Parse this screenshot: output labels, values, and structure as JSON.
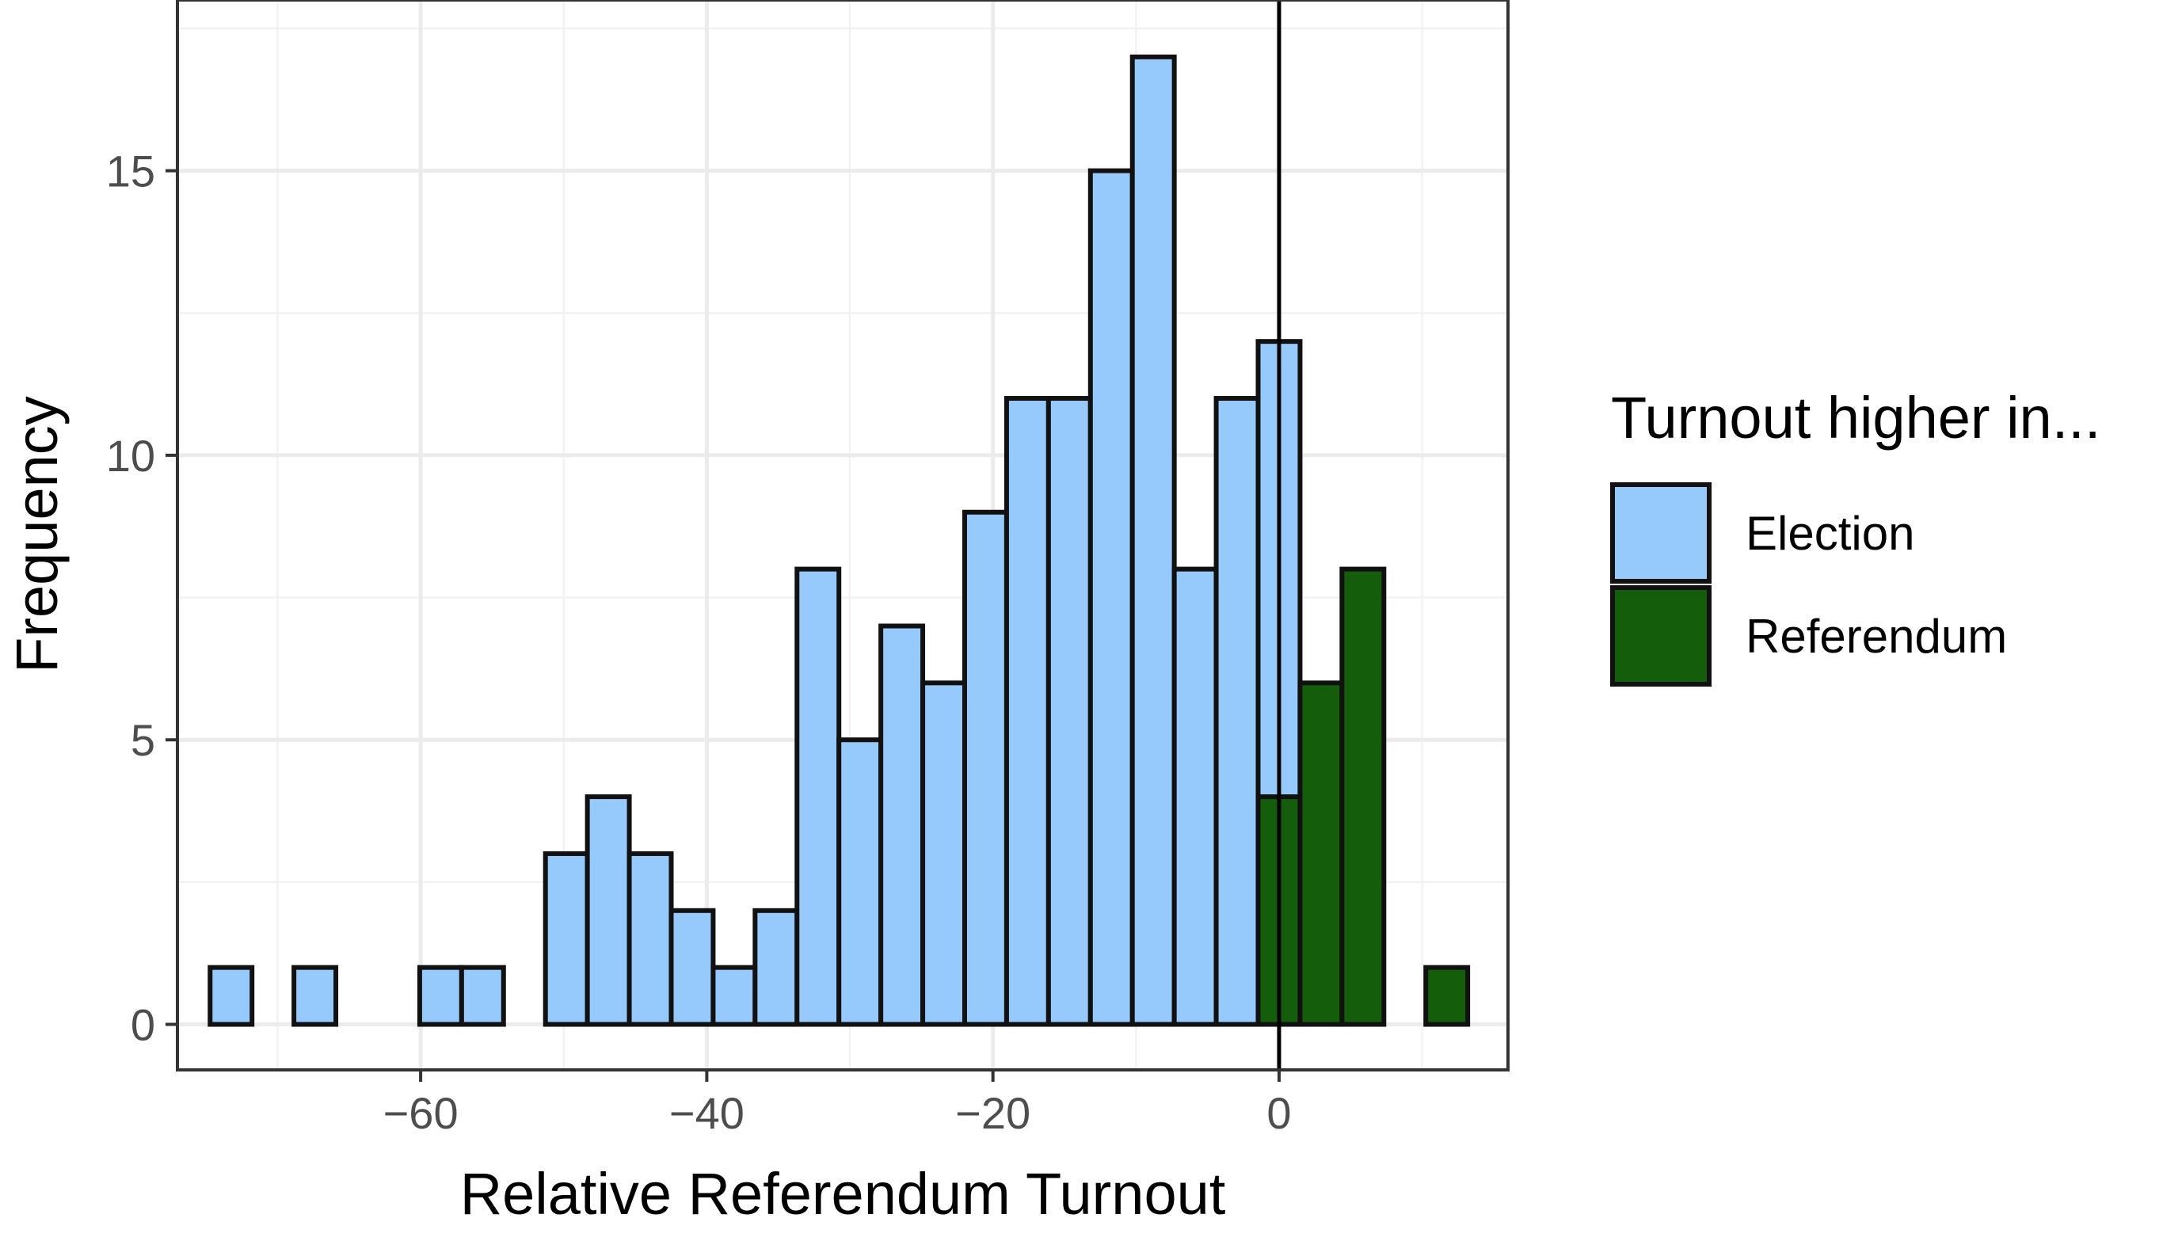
{
  "chart_data": {
    "type": "bar",
    "subtype": "stacked-histogram",
    "title": "",
    "xlabel": "Relative Referendum Turnout",
    "ylabel": "Frequency",
    "xlim": [
      -77,
      16
    ],
    "ylim": [
      -0.8,
      18.0
    ],
    "x_ticks": [
      -60,
      -40,
      -20,
      0
    ],
    "x_tick_labels": [
      "−60",
      "−40",
      "−20",
      "0"
    ],
    "y_ticks": [
      0,
      5,
      10,
      15
    ],
    "y_tick_labels": [
      "0",
      "5",
      "10",
      "15"
    ],
    "bin_width": 2.93,
    "bin_centers": [
      -73.25,
      -70.32,
      -67.39,
      -64.46,
      -61.53,
      -58.6,
      -55.67,
      -52.74,
      -49.81,
      -46.88,
      -43.95,
      -41.02,
      -38.09,
      -35.16,
      -32.23,
      -29.3,
      -26.37,
      -23.44,
      -20.51,
      -17.58,
      -14.65,
      -11.72,
      -8.79,
      -5.86,
      -2.93,
      0.0,
      2.93,
      5.86,
      8.79,
      11.72
    ],
    "series": [
      {
        "name": "Election",
        "color": "#96CAFC",
        "values": [
          1,
          0,
          1,
          0,
          0,
          1,
          1,
          0,
          3,
          4,
          3,
          2,
          1,
          2,
          8,
          5,
          7,
          6,
          9,
          11,
          11,
          15,
          17,
          8,
          11,
          8,
          0,
          0,
          0,
          0
        ]
      },
      {
        "name": "Referendum",
        "color": "#145E0B",
        "values": [
          0,
          0,
          0,
          0,
          0,
          0,
          0,
          0,
          0,
          0,
          0,
          0,
          0,
          0,
          0,
          0,
          0,
          0,
          0,
          0,
          0,
          0,
          0,
          0,
          0,
          4,
          6,
          8,
          0,
          1
        ]
      }
    ],
    "vline_x": 0,
    "grid": true,
    "legend": {
      "title": "Turnout higher in...",
      "position": "right",
      "entries": [
        "Election",
        "Referendum"
      ]
    }
  }
}
